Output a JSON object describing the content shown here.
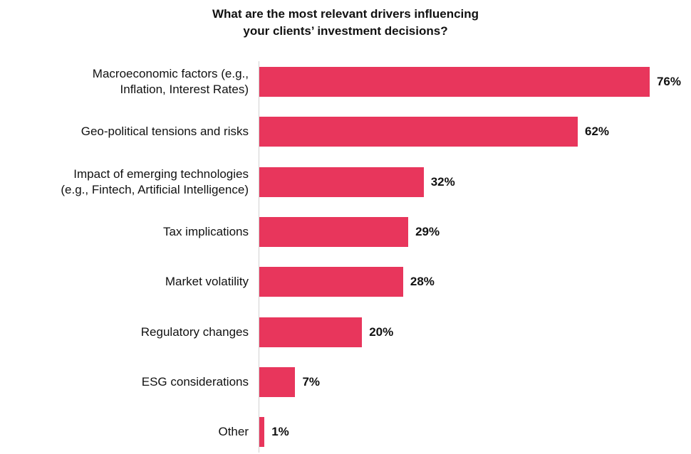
{
  "chart_data": {
    "type": "barh",
    "title": "What are the most relevant drivers influencing\nyour clients’ investment decisions?",
    "categories": [
      "Macroeconomic factors (e.g.,\nInflation, Interest Rates)",
      "Geo-political tensions and risks",
      "Impact of emerging technologies\n(e.g., Fintech, Artificial Intelligence)",
      "Tax implications",
      "Market volatility",
      "Regulatory changes",
      "ESG considerations",
      "Other"
    ],
    "values": [
      76,
      62,
      32,
      29,
      28,
      20,
      7,
      1
    ],
    "value_labels": [
      "76%",
      "62%",
      "32%",
      "29%",
      "28%",
      "20%",
      "7%",
      "1%"
    ],
    "color": "#e8365c"
  }
}
